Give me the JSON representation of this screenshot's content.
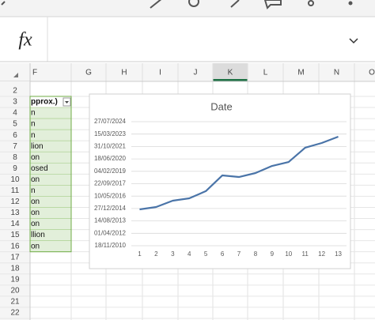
{
  "formula_bar": {
    "label": "fx"
  },
  "column_headers": [
    "F",
    "G",
    "H",
    "I",
    "J",
    "K",
    "L",
    "M",
    "N",
    "O"
  ],
  "row_headers": [
    "2",
    "3",
    "4",
    "5",
    "6",
    "7",
    "8",
    "9",
    "10",
    "11",
    "12",
    "13",
    "14",
    "15",
    "16",
    "17",
    "18",
    "19",
    "20",
    "21",
    "22"
  ],
  "cells": [
    "pprox.)",
    "n",
    "n",
    "n",
    "lion",
    "on",
    "osed",
    "on",
    "n",
    "on",
    "on",
    "on",
    "llion",
    "on"
  ],
  "chart_data": {
    "type": "line",
    "title": "Date",
    "categories": [
      1,
      2,
      3,
      4,
      5,
      6,
      7,
      8,
      9,
      10,
      11,
      12,
      13
    ],
    "values": [
      41965,
      42060,
      42315,
      42410,
      42700,
      43335,
      43270,
      43430,
      43715,
      43875,
      44450,
      44640,
      44895
    ],
    "color": "#4a74a8",
    "ylim": [
      40500,
      45500
    ],
    "yticks": [
      {
        "value": 40500,
        "label": "18/11/2010"
      },
      {
        "value": 41000,
        "label": "01/04/2012"
      },
      {
        "value": 41500,
        "label": "14/08/2013"
      },
      {
        "value": 42000,
        "label": "27/12/2014"
      },
      {
        "value": 42500,
        "label": "10/05/2016"
      },
      {
        "value": 43000,
        "label": "22/09/2017"
      },
      {
        "value": 43500,
        "label": "04/02/2019"
      },
      {
        "value": 44000,
        "label": "18/06/2020"
      },
      {
        "value": 44500,
        "label": "31/10/2021"
      },
      {
        "value": 45000,
        "label": "15/03/2023"
      },
      {
        "value": 45500,
        "label": "27/07/2024"
      }
    ],
    "grid": true
  }
}
